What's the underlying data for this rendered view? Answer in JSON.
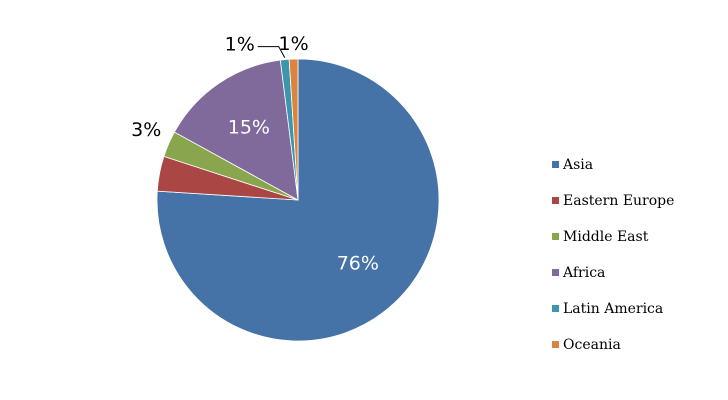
{
  "chart_data": {
    "type": "pie",
    "categories": [
      "Asia",
      "Eastern Europe",
      "Middle East",
      "Africa",
      "Latin America",
      "Oceania"
    ],
    "values": [
      76,
      4,
      3,
      15,
      1,
      1
    ],
    "data_labels": [
      "76%",
      "",
      "3%",
      "15%",
      "1%",
      "1%"
    ],
    "colors": [
      "#4572A7",
      "#AA4643",
      "#89A54E",
      "#80699B",
      "#3D96AE",
      "#DB843D"
    ],
    "legend_position": "right",
    "start_angle": "12 o'clock",
    "direction": "clockwise"
  }
}
